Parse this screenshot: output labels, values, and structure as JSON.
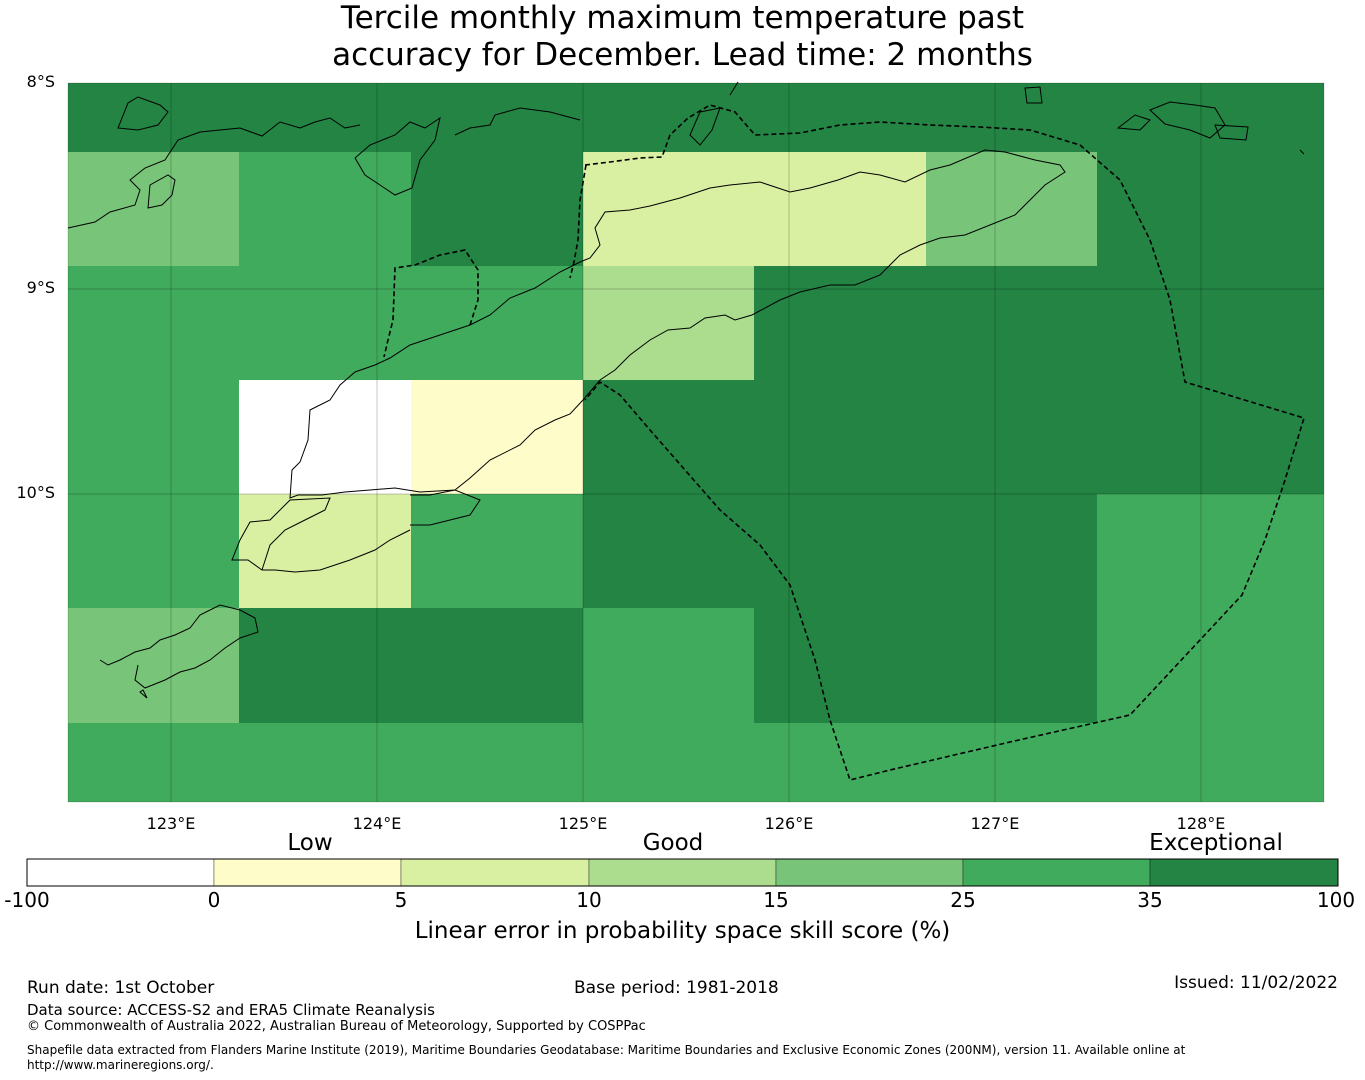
{
  "title": {
    "line1": "Tercile monthly maximum temperature past",
    "line2": "accuracy for December. Lead time: 2 months"
  },
  "map": {
    "lat_labels": [
      "8°S",
      "9°S",
      "10°S"
    ],
    "lon_labels": [
      "123°E",
      "124°E",
      "125°E",
      "126°E",
      "127°E",
      "128°E"
    ],
    "grid": [
      [
        "35-100",
        "35-100",
        "35-100",
        "35-100",
        "35-100",
        "35-100",
        "35-100"
      ],
      [
        "15-25",
        "25-35",
        "35-100",
        "5-10",
        "5-10",
        "15-25",
        "35-100"
      ],
      [
        "25-35",
        "25-35",
        "25-35",
        "10-15",
        "35-100",
        "35-100",
        "35-100"
      ],
      [
        "25-35",
        "-100-0",
        "0-5",
        "35-100",
        "35-100",
        "35-100",
        "35-100"
      ],
      [
        "25-35",
        "5-10",
        "25-35",
        "35-100",
        "35-100",
        "35-100",
        "25-35"
      ],
      [
        "15-25",
        "35-100",
        "35-100",
        "25-35",
        "35-100",
        "35-100",
        "25-35"
      ],
      [
        "25-35",
        "25-35",
        "25-35",
        "25-35",
        "25-35",
        "25-35",
        "25-35"
      ]
    ]
  },
  "colorbar": {
    "category_labels": [
      "Low",
      "Good",
      "Exceptional"
    ],
    "ticks": [
      "-100",
      "0",
      "5",
      "10",
      "15",
      "25",
      "35",
      "100"
    ],
    "bins": [
      {
        "range": "-100-0",
        "color": "#ffffff"
      },
      {
        "range": "0-5",
        "color": "#fefdca"
      },
      {
        "range": "5-10",
        "color": "#d9efa2"
      },
      {
        "range": "10-15",
        "color": "#acdd8e"
      },
      {
        "range": "15-25",
        "color": "#78c579"
      },
      {
        "range": "25-35",
        "color": "#41ab5d"
      },
      {
        "range": "35-100",
        "color": "#238443"
      }
    ],
    "label": "Linear error in probability space skill score (%)"
  },
  "footer": {
    "run_date": "Run date: 1st October",
    "base_period": "Base period: 1981-2018",
    "issued": "Issued: 11/02/2022",
    "data_source": "Data source: ACCESS-S2 and ERA5 Climate Reanalysis",
    "copyright": "© Commonwealth of Australia 2022, Australian Bureau of Meteorology, Supported by COSPPac",
    "shapefile_line1": "Shapefile data extracted from Flanders Marine Institute (2019), Maritime Boundaries Geodatabase: Maritime Boundaries and Exclusive Economic Zones (200NM), version 11. Available online at",
    "shapefile_line2": "http://www.marineregions.org/."
  }
}
